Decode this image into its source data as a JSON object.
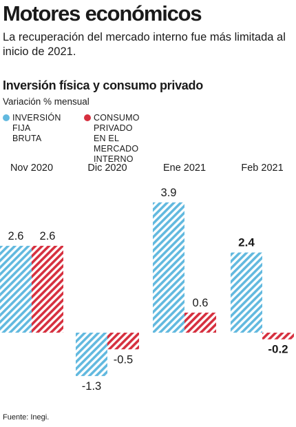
{
  "header": {
    "title": "Motores económicos",
    "subtitle": "La recuperación del mercado interno fue más limitada al inicio de 2021."
  },
  "chart": {
    "title": "Inversión física y consumo privado",
    "subtitle": "Variación % mensual",
    "source": "Fuente: Inegi."
  },
  "legend": [
    {
      "label": "INVERSIÓN\nFIJA BRUTA",
      "color": "#62b9df"
    },
    {
      "label": "CONSUMO PRIVADO\nEN EL MERCADO INTERNO",
      "color": "#d6303f"
    }
  ],
  "chart_data": {
    "type": "bar",
    "categories": [
      "Nov 2020",
      "Dic 2020",
      "Ene 2021",
      "Feb 2021"
    ],
    "series": [
      {
        "name": "INVERSIÓN FIJA BRUTA",
        "values": [
          2.6,
          -1.3,
          3.9,
          2.4
        ],
        "labels": [
          "2.6",
          "-1.3",
          "3.9",
          "2.4"
        ],
        "color": "#62b9df",
        "pattern": "hatched"
      },
      {
        "name": "CONSUMO PRIVADO EN EL MERCADO INTERNO",
        "values": [
          2.6,
          -0.5,
          0.6,
          -0.2
        ],
        "labels": [
          "2.6",
          "-0.5",
          "0.6",
          "-0.2"
        ],
        "color": "#d6303f",
        "pattern": "hatched"
      }
    ],
    "bold_labels": [
      "2.4",
      "-0.2"
    ],
    "ylim": [
      -1.3,
      3.9
    ],
    "grid": false
  }
}
